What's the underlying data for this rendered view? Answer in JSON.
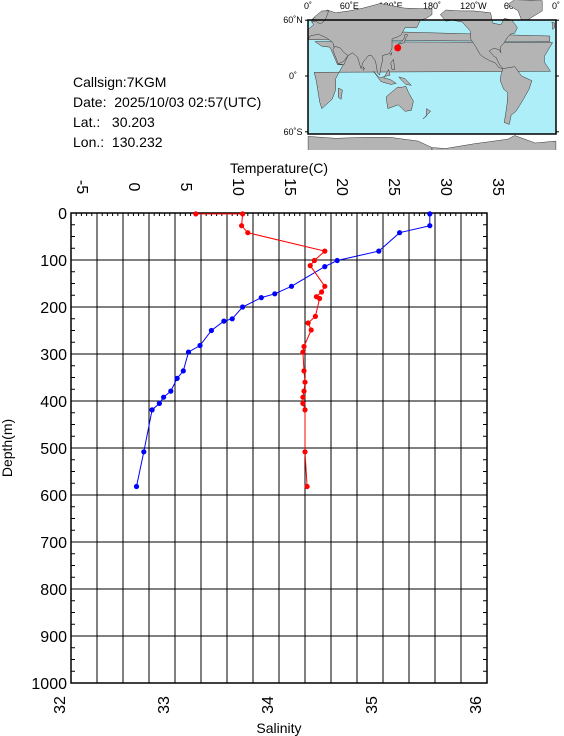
{
  "info": {
    "callsign": "Callsign:7KGM",
    "date": "Date:  2025/10/03 02:57(UTC)",
    "lat": "Lat.:   30.203",
    "lon": "Lon.:  130.232"
  },
  "map": {
    "top_labels": [
      "0˚",
      "60˚E",
      "120˚E",
      "180˚",
      "120˚W",
      "60˚W",
      "0˚"
    ],
    "lat_labels": [
      "60˚N",
      "0˚",
      "60˚S"
    ],
    "colors": {
      "ocean": "#aeeef8",
      "land": "#b4b4b4",
      "marker": "#ff0000"
    },
    "marker": {
      "lat": 30.203,
      "lon": 130.232
    }
  },
  "chart_data": {
    "type": "line",
    "title": "",
    "ylabel": "Depth(m)",
    "ylim": [
      0,
      1000
    ],
    "yticks": [
      "0",
      "100",
      "200",
      "300",
      "400",
      "500",
      "600",
      "700",
      "800",
      "900",
      "1000"
    ],
    "top_axis": {
      "label": "Temperature(C)",
      "range": [
        -5,
        35
      ],
      "ticks": [
        "-5",
        "0",
        "5",
        "10",
        "15",
        "20",
        "25",
        "30",
        "35"
      ]
    },
    "bottom_axis": {
      "label": "Salinity",
      "range": [
        32,
        36
      ],
      "ticks": [
        "32",
        "33",
        "34",
        "35",
        "36"
      ]
    },
    "grid": true,
    "series": [
      {
        "axis": "temperature",
        "color": "#0000ff",
        "points": [
          [
            29.5,
            2
          ],
          [
            29.5,
            27
          ],
          [
            26.6,
            42
          ],
          [
            24.6,
            81
          ],
          [
            20.6,
            101
          ],
          [
            19.4,
            114
          ],
          [
            16.2,
            156
          ],
          [
            14.6,
            172
          ],
          [
            13.3,
            180
          ],
          [
            11.5,
            200
          ],
          [
            10.5,
            225
          ],
          [
            9.7,
            230
          ],
          [
            8.5,
            250
          ],
          [
            7.4,
            282
          ],
          [
            6.3,
            296
          ],
          [
            5.8,
            336
          ],
          [
            5.2,
            352
          ],
          [
            4.6,
            379
          ],
          [
            3.9,
            392
          ],
          [
            3.5,
            405
          ],
          [
            2.8,
            419
          ],
          [
            2.0,
            508
          ],
          [
            1.3,
            582
          ]
        ]
      },
      {
        "axis": "salinity",
        "color": "#ff0000",
        "points": [
          [
            33.2,
            2
          ],
          [
            33.65,
            2
          ],
          [
            33.64,
            27
          ],
          [
            33.7,
            42
          ],
          [
            34.44,
            81
          ],
          [
            34.34,
            101
          ],
          [
            34.3,
            112
          ],
          [
            34.44,
            156
          ],
          [
            34.41,
            168
          ],
          [
            34.36,
            178
          ],
          [
            34.39,
            182
          ],
          [
            34.35,
            220
          ],
          [
            34.28,
            234
          ],
          [
            34.31,
            249
          ],
          [
            34.24,
            284
          ],
          [
            34.23,
            296
          ],
          [
            34.24,
            336
          ],
          [
            34.25,
            360
          ],
          [
            34.24,
            379
          ],
          [
            34.23,
            392
          ],
          [
            34.23,
            405
          ],
          [
            34.25,
            419
          ],
          [
            34.25,
            508
          ],
          [
            34.27,
            582
          ]
        ]
      }
    ]
  }
}
